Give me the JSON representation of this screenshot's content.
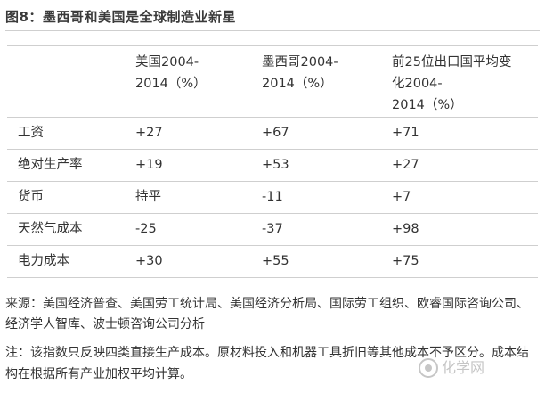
{
  "title": "图8：墨西哥和美国是全球制造业新星",
  "table": {
    "headers": [
      "",
      "美国2004-\n2014（%）",
      "墨西哥2004-\n2014（%）",
      "前25位出口国平均变\n化2004-\n2014（%）"
    ],
    "rows": [
      {
        "label": "工资",
        "us": "+27",
        "mx": "+67",
        "top25": "+71"
      },
      {
        "label": "绝对生产率",
        "us": "+19",
        "mx": "+53",
        "top25": "+27"
      },
      {
        "label": "货币",
        "us": "持平",
        "mx": "-11",
        "top25": "+7"
      },
      {
        "label": "天然气成本",
        "us": "-25",
        "mx": "-37",
        "top25": "+98"
      },
      {
        "label": "电力成本",
        "us": "+30",
        "mx": "+55",
        "top25": "+75"
      }
    ]
  },
  "source": "来源：美国经济普查、美国劳工统计局、美国经济分析局、国际劳工组织、欧睿国际咨询公司、经济学人智库、波士顿咨询公司分析",
  "note": "注：该指数只反映四类直接生产成本。原材料投入和机器工具折旧等其他成本不予区分。成本结构在根据所有产业加权平均计算。",
  "watermark": "化学网"
}
